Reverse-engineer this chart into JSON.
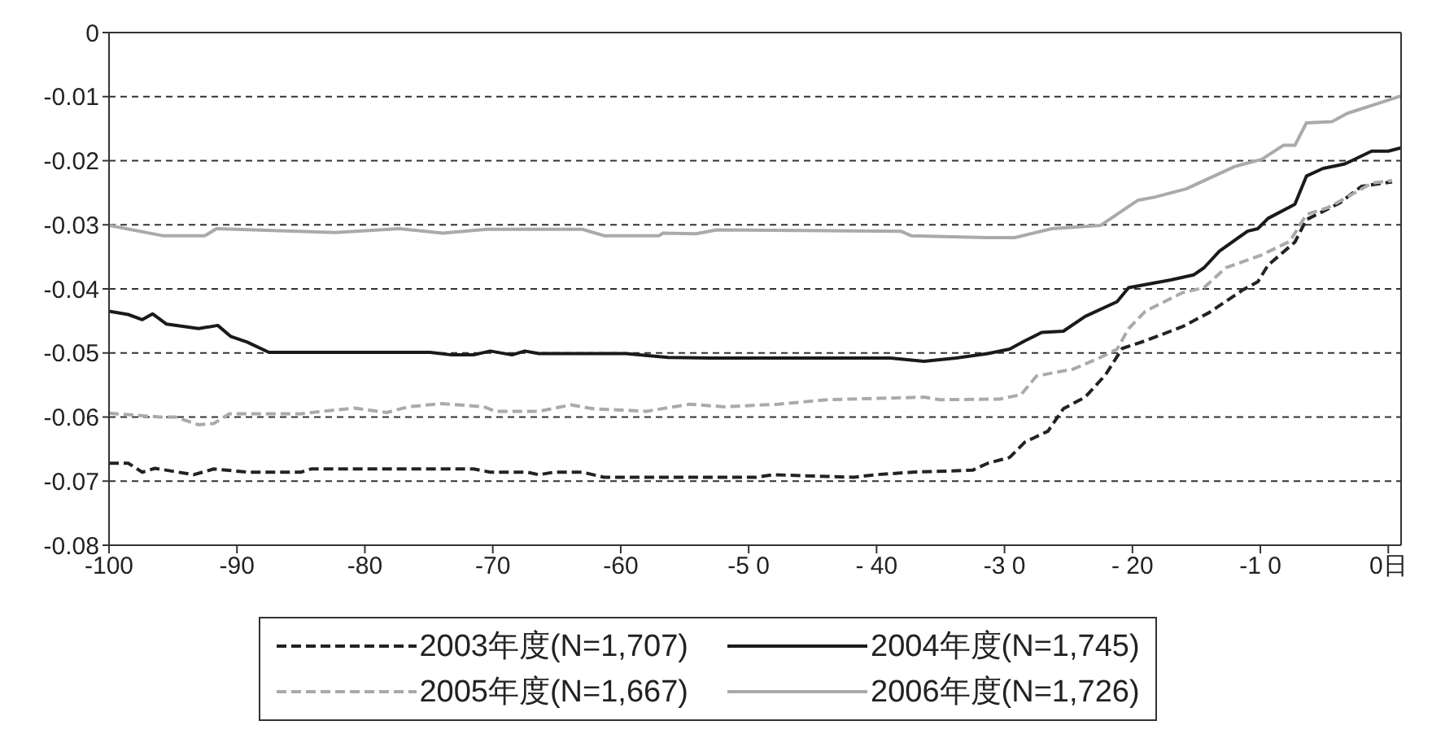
{
  "chart_data": {
    "type": "line",
    "ylim": [
      -0.08,
      0
    ],
    "yticks": [
      0,
      -0.01,
      -0.02,
      -0.03,
      -0.04,
      -0.05,
      -0.06,
      -0.07,
      -0.08
    ],
    "xlim": [
      -100,
      1
    ],
    "xticks": [
      -100,
      -90,
      -80,
      -70,
      -60,
      {
        "value": -50,
        "label": "-5 0"
      },
      {
        "value": -40,
        "label": "- 40"
      },
      {
        "value": -30,
        "label": "-3 0"
      },
      {
        "value": -20,
        "label": "- 20"
      },
      {
        "value": -10,
        "label": "-1 0"
      },
      {
        "value": 0,
        "label": "0日"
      }
    ],
    "grid": "y",
    "legend": "bottom",
    "marker": "none",
    "series": [
      {
        "name": "2003年度(N=1,707)",
        "color": "#222222",
        "line_style": "dashed",
        "x": [
          -100,
          -98.5,
          -97.4,
          -96.4,
          -93.4,
          -91.8,
          -89.2,
          -85,
          -84.2,
          -71.5,
          -70.2,
          -67.3,
          -66.4,
          -65.2,
          -63,
          -61.3,
          -59.6,
          -49.4,
          -48.1,
          -41.8,
          -40.1,
          -37.2,
          -32.5,
          -31.3,
          -29.6,
          -28.4,
          -26.6,
          -25.4,
          -23.7,
          -22.1,
          -20.8,
          -19,
          -16.1,
          -14,
          -11.4,
          -10.2,
          -9.4,
          -7.3,
          -6.4,
          -3.8,
          -2.1,
          0.3
        ],
        "values": [
          -0.0672,
          -0.0672,
          -0.0686,
          -0.068,
          -0.069,
          -0.0681,
          -0.0686,
          -0.0686,
          -0.0681,
          -0.0681,
          -0.0686,
          -0.0686,
          -0.069,
          -0.0686,
          -0.0686,
          -0.0694,
          -0.0694,
          -0.0694,
          -0.069,
          -0.0694,
          -0.069,
          -0.0686,
          -0.0683,
          -0.0672,
          -0.0663,
          -0.0639,
          -0.0622,
          -0.0587,
          -0.0569,
          -0.0534,
          -0.0493,
          -0.0481,
          -0.0459,
          -0.0437,
          -0.0402,
          -0.0389,
          -0.0363,
          -0.0327,
          -0.0292,
          -0.0266,
          -0.024,
          -0.0233
        ]
      },
      {
        "name": "2004年度(N=1,745)",
        "color": "#1a1a1a",
        "line_style": "solid",
        "x": [
          -100,
          -98.5,
          -97.4,
          -96.6,
          -95.5,
          -93,
          -91.5,
          -90.5,
          -89.2,
          -87.5,
          -74.9,
          -73.2,
          -71.5,
          -70.2,
          -68.5,
          -67.5,
          -66.4,
          -59.6,
          -56.3,
          -52.9,
          -38.9,
          -36.3,
          -33.8,
          -31.3,
          -29.6,
          -28.4,
          -27.1,
          -25.4,
          -23.7,
          -21.2,
          -20.3,
          -17,
          -15.2,
          -14.4,
          -13.2,
          -11,
          -10.2,
          -9.4,
          -7.3,
          -6.4,
          -5.1,
          -3.4,
          -1.3,
          0,
          1
        ],
        "values": [
          -0.0435,
          -0.044,
          -0.0448,
          -0.0439,
          -0.0455,
          -0.0462,
          -0.0457,
          -0.0474,
          -0.0483,
          -0.0499,
          -0.0499,
          -0.0503,
          -0.0503,
          -0.0497,
          -0.0503,
          -0.0497,
          -0.0501,
          -0.0501,
          -0.0507,
          -0.0508,
          -0.0508,
          -0.0513,
          -0.0508,
          -0.0501,
          -0.0494,
          -0.0481,
          -0.0468,
          -0.0466,
          -0.0443,
          -0.042,
          -0.0398,
          -0.0386,
          -0.0378,
          -0.0367,
          -0.0341,
          -0.031,
          -0.0306,
          -0.029,
          -0.0268,
          -0.0224,
          -0.0212,
          -0.0205,
          -0.0185,
          -0.0185,
          -0.018
        ]
      },
      {
        "name": "2005年度(N=1,667)",
        "color": "#aaaaaa",
        "line_style": "dashed",
        "x": [
          -100,
          -96,
          -94.8,
          -93,
          -91.8,
          -90.6,
          -85,
          -83.3,
          -80.8,
          -78.3,
          -76.6,
          -74,
          -70.7,
          -69.8,
          -66.4,
          -63.9,
          -62.2,
          -58,
          -54.6,
          -51.9,
          -47.7,
          -43.9,
          -36.3,
          -35,
          -30.4,
          -28.7,
          -27.5,
          -24.6,
          -22.5,
          -21.2,
          -20.3,
          -19,
          -16.1,
          -14.4,
          -12.7,
          -9.9,
          -7.7,
          -6.4,
          -4.7,
          -3.4,
          -1.3,
          0.3
        ],
        "values": [
          -0.0594,
          -0.06,
          -0.06,
          -0.0612,
          -0.061,
          -0.0595,
          -0.0595,
          -0.0591,
          -0.0586,
          -0.0593,
          -0.0584,
          -0.0579,
          -0.0584,
          -0.0591,
          -0.0591,
          -0.0581,
          -0.0587,
          -0.0591,
          -0.058,
          -0.0584,
          -0.058,
          -0.0573,
          -0.0569,
          -0.0573,
          -0.0572,
          -0.0565,
          -0.0536,
          -0.0525,
          -0.0507,
          -0.0494,
          -0.0462,
          -0.0435,
          -0.0406,
          -0.0398,
          -0.0367,
          -0.0347,
          -0.0326,
          -0.0284,
          -0.0273,
          -0.0259,
          -0.0235,
          -0.0231
        ]
      },
      {
        "name": "2006年度(N=1,726)",
        "color": "#aaaaaa",
        "line_style": "solid",
        "x": [
          -100,
          -95.8,
          -92.5,
          -91.6,
          -82.3,
          -77.3,
          -73.9,
          -70.5,
          -63,
          -61.3,
          -57,
          -56.7,
          -54.1,
          -52.5,
          -38.1,
          -37.3,
          -31.4,
          -29.2,
          -26.3,
          -22.5,
          -19.6,
          -18.3,
          -15.8,
          -12,
          -9.9,
          -8.2,
          -7.3,
          -6.4,
          -4.4,
          -3.2,
          -1,
          1
        ],
        "values": [
          -0.0301,
          -0.0317,
          -0.0317,
          -0.0306,
          -0.0312,
          -0.0306,
          -0.0313,
          -0.0307,
          -0.0307,
          -0.0317,
          -0.0317,
          -0.0313,
          -0.0314,
          -0.0308,
          -0.031,
          -0.0317,
          -0.032,
          -0.032,
          -0.0306,
          -0.0301,
          -0.0262,
          -0.0257,
          -0.0244,
          -0.0209,
          -0.0198,
          -0.0176,
          -0.0176,
          -0.0141,
          -0.0139,
          -0.0126,
          -0.0112,
          -0.0099
        ]
      }
    ]
  }
}
